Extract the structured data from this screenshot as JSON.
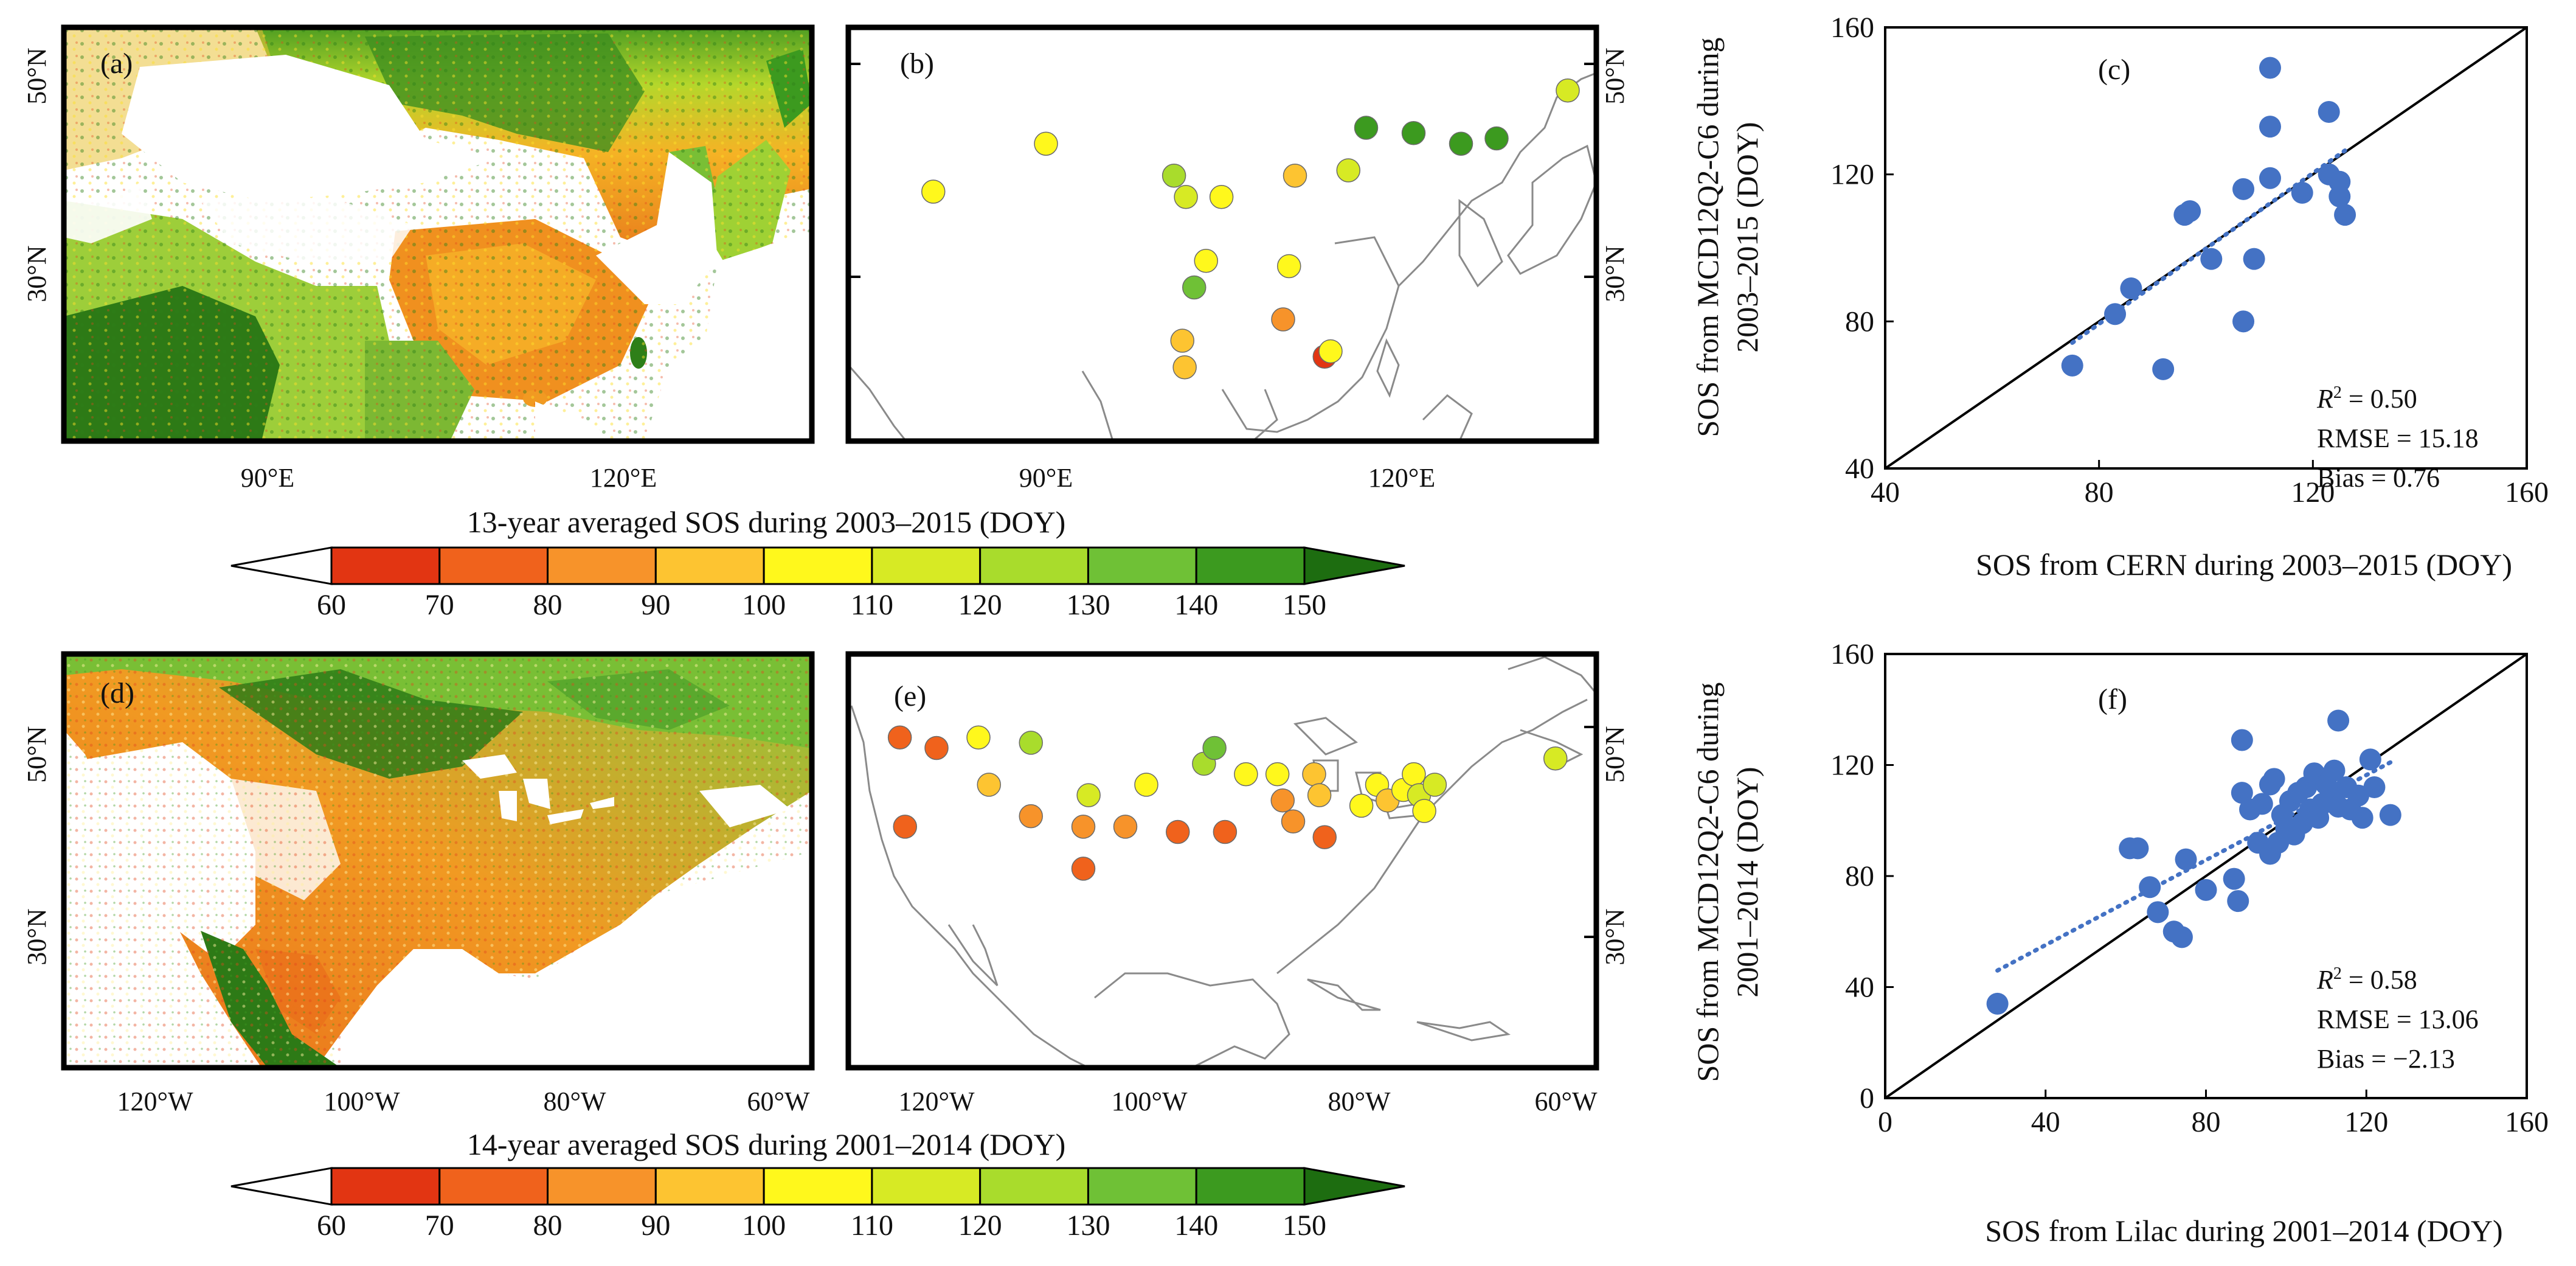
{
  "colors": {
    "cb_bins": [
      "#ffffff",
      "#e23512",
      "#f0621c",
      "#f7932a",
      "#fdc431",
      "#fff81c",
      "#d7ea24",
      "#a9dc2c",
      "#6fc136",
      "#3c9a1f",
      "#1d6d10"
    ],
    "scatter_point": "#4472c4",
    "trend": "#4472c4",
    "coast": "#8a8a8a"
  },
  "maps": {
    "a": {
      "label": "(a)",
      "lat_labels": [
        "50°N",
        "30°N"
      ],
      "lon_labels": [
        "90°E",
        "120°E"
      ]
    },
    "b": {
      "label": "(b)",
      "lat_labels": [
        "50°N",
        "30°N"
      ],
      "lon_labels": [
        "90°E",
        "120°E"
      ],
      "sites": [
        {
          "lon": 90.0,
          "lat": 42.5,
          "sos": 105
        },
        {
          "lon": 80.5,
          "lat": 38.0,
          "sos": 104
        },
        {
          "lon": 100.8,
          "lat": 39.5,
          "sos": 121
        },
        {
          "lon": 101.8,
          "lat": 37.5,
          "sos": 118
        },
        {
          "lon": 104.8,
          "lat": 37.5,
          "sos": 107
        },
        {
          "lon": 111.0,
          "lat": 39.5,
          "sos": 93
        },
        {
          "lon": 115.5,
          "lat": 40.0,
          "sos": 112
        },
        {
          "lon": 117.0,
          "lat": 44.0,
          "sos": 141
        },
        {
          "lon": 121.0,
          "lat": 43.5,
          "sos": 144
        },
        {
          "lon": 125.0,
          "lat": 42.5,
          "sos": 146
        },
        {
          "lon": 128.0,
          "lat": 43.0,
          "sos": 140
        },
        {
          "lon": 134.0,
          "lat": 47.5,
          "sos": 116
        },
        {
          "lon": 103.5,
          "lat": 31.5,
          "sos": 100
        },
        {
          "lon": 110.5,
          "lat": 31.0,
          "sos": 102
        },
        {
          "lon": 102.5,
          "lat": 29.0,
          "sos": 136
        },
        {
          "lon": 110.0,
          "lat": 26.0,
          "sos": 89
        },
        {
          "lon": 101.5,
          "lat": 24.0,
          "sos": 92
        },
        {
          "lon": 101.7,
          "lat": 21.5,
          "sos": 98
        },
        {
          "lon": 113.5,
          "lat": 22.5,
          "sos": 63
        },
        {
          "lon": 114.0,
          "lat": 23.0,
          "sos": 108
        }
      ]
    },
    "d": {
      "label": "(d)",
      "lat_labels": [
        "50°N",
        "30°N"
      ],
      "lon_labels": [
        "120°W",
        "100°W",
        "80°W",
        "60°W"
      ]
    },
    "e": {
      "label": "(e)",
      "lat_labels": [
        "50°N",
        "30°N"
      ],
      "lon_labels": [
        "120°W",
        "100°W",
        "80°W",
        "60°W"
      ],
      "sites": [
        {
          "lon": -123.5,
          "lat": 49.0,
          "sos": 77
        },
        {
          "lon": -120.0,
          "lat": 48.0,
          "sos": 79
        },
        {
          "lon": -116.0,
          "lat": 49.0,
          "sos": 104
        },
        {
          "lon": -111.0,
          "lat": 48.5,
          "sos": 128
        },
        {
          "lon": -115.0,
          "lat": 44.5,
          "sos": 94
        },
        {
          "lon": -123.0,
          "lat": 40.5,
          "sos": 74
        },
        {
          "lon": -111.0,
          "lat": 41.5,
          "sos": 82
        },
        {
          "lon": -105.5,
          "lat": 43.5,
          "sos": 116
        },
        {
          "lon": -100.0,
          "lat": 44.5,
          "sos": 105
        },
        {
          "lon": -94.5,
          "lat": 46.5,
          "sos": 122
        },
        {
          "lon": -93.5,
          "lat": 48.0,
          "sos": 132
        },
        {
          "lon": -106.0,
          "lat": 40.5,
          "sos": 85
        },
        {
          "lon": -102.0,
          "lat": 40.5,
          "sos": 82
        },
        {
          "lon": -97.0,
          "lat": 40.0,
          "sos": 79
        },
        {
          "lon": -92.5,
          "lat": 40.0,
          "sos": 74
        },
        {
          "lon": -106.0,
          "lat": 36.5,
          "sos": 78
        },
        {
          "lon": -90.5,
          "lat": 45.5,
          "sos": 103
        },
        {
          "lon": -87.5,
          "lat": 45.5,
          "sos": 100
        },
        {
          "lon": -87.0,
          "lat": 43.0,
          "sos": 88
        },
        {
          "lon": -86.0,
          "lat": 41.0,
          "sos": 83
        },
        {
          "lon": -84.0,
          "lat": 45.5,
          "sos": 99
        },
        {
          "lon": -83.5,
          "lat": 43.5,
          "sos": 94
        },
        {
          "lon": -83.0,
          "lat": 39.5,
          "sos": 76
        },
        {
          "lon": -79.5,
          "lat": 42.5,
          "sos": 101
        },
        {
          "lon": -78.0,
          "lat": 44.5,
          "sos": 108
        },
        {
          "lon": -77.0,
          "lat": 43.0,
          "sos": 95
        },
        {
          "lon": -75.5,
          "lat": 44.0,
          "sos": 104
        },
        {
          "lon": -74.5,
          "lat": 45.5,
          "sos": 106
        },
        {
          "lon": -74.0,
          "lat": 43.5,
          "sos": 110
        },
        {
          "lon": -73.5,
          "lat": 42.0,
          "sos": 102
        },
        {
          "lon": -72.5,
          "lat": 44.5,
          "sos": 114
        },
        {
          "lon": -61.0,
          "lat": 47.0,
          "sos": 118
        }
      ]
    }
  },
  "colorbars": [
    {
      "title": "13-year averaged SOS during 2003–2015 (DOY)",
      "ticks": [
        "60",
        "70",
        "80",
        "90",
        "100",
        "110",
        "120",
        "130",
        "140",
        "150"
      ]
    },
    {
      "title": "14-year averaged SOS during 2001–2014 (DOY)",
      "ticks": [
        "60",
        "70",
        "80",
        "90",
        "100",
        "110",
        "120",
        "130",
        "140",
        "150"
      ]
    }
  ],
  "chart_data": [
    {
      "type": "scatter",
      "panel": "(c)",
      "xlabel": "SOS from CERN during 2003–2015 (DOY)",
      "ylabel_line1": "SOS from MCD12Q2-C6 during",
      "ylabel_line2": "2003–2015 (DOY)",
      "xlim": [
        40,
        160
      ],
      "ylim": [
        40,
        160
      ],
      "xticks": [
        40,
        80,
        120,
        160
      ],
      "yticks": [
        40,
        80,
        120,
        160
      ],
      "stats": {
        "r2_label": "R",
        "r2_value": " = 0.50",
        "rmse": "RMSE = 15.18",
        "bias": "Bias = 0.76"
      },
      "trend_x": [
        75,
        126
      ],
      "points": [
        {
          "x": 75,
          "y": 68
        },
        {
          "x": 83,
          "y": 82
        },
        {
          "x": 86,
          "y": 89
        },
        {
          "x": 92,
          "y": 67
        },
        {
          "x": 96,
          "y": 109
        },
        {
          "x": 97,
          "y": 110
        },
        {
          "x": 101,
          "y": 97
        },
        {
          "x": 107,
          "y": 80
        },
        {
          "x": 107,
          "y": 116
        },
        {
          "x": 109,
          "y": 97
        },
        {
          "x": 112,
          "y": 119
        },
        {
          "x": 112,
          "y": 149
        },
        {
          "x": 112,
          "y": 133
        },
        {
          "x": 118,
          "y": 115
        },
        {
          "x": 123,
          "y": 137
        },
        {
          "x": 123,
          "y": 120
        },
        {
          "x": 125,
          "y": 118
        },
        {
          "x": 125,
          "y": 114
        },
        {
          "x": 126,
          "y": 109
        }
      ]
    },
    {
      "type": "scatter",
      "panel": "(f)",
      "xlabel": "SOS from Lilac during 2001–2014 (DOY)",
      "ylabel_line1": "SOS from MCD12Q2-C6 during",
      "ylabel_line2": "2001–2014 (DOY)",
      "xlim": [
        0,
        160
      ],
      "ylim": [
        0,
        160
      ],
      "xticks": [
        0,
        40,
        80,
        120,
        160
      ],
      "yticks": [
        0,
        40,
        80,
        120,
        160
      ],
      "stats": {
        "r2_label": "R",
        "r2_value": " = 0.58",
        "rmse": "RMSE = 13.06",
        "bias": "Bias = −2.13"
      },
      "trend_x": [
        28,
        126
      ],
      "points": [
        {
          "x": 28,
          "y": 34
        },
        {
          "x": 61,
          "y": 90
        },
        {
          "x": 63,
          "y": 90
        },
        {
          "x": 66,
          "y": 76
        },
        {
          "x": 68,
          "y": 67
        },
        {
          "x": 72,
          "y": 60
        },
        {
          "x": 74,
          "y": 58
        },
        {
          "x": 75,
          "y": 86
        },
        {
          "x": 80,
          "y": 75
        },
        {
          "x": 87,
          "y": 79
        },
        {
          "x": 88,
          "y": 71
        },
        {
          "x": 89,
          "y": 110
        },
        {
          "x": 89,
          "y": 129
        },
        {
          "x": 91,
          "y": 104
        },
        {
          "x": 93,
          "y": 92
        },
        {
          "x": 94,
          "y": 106
        },
        {
          "x": 96,
          "y": 88
        },
        {
          "x": 96,
          "y": 113
        },
        {
          "x": 97,
          "y": 115
        },
        {
          "x": 98,
          "y": 92
        },
        {
          "x": 99,
          "y": 102
        },
        {
          "x": 100,
          "y": 97
        },
        {
          "x": 101,
          "y": 107
        },
        {
          "x": 102,
          "y": 95
        },
        {
          "x": 103,
          "y": 110
        },
        {
          "x": 104,
          "y": 99
        },
        {
          "x": 105,
          "y": 112
        },
        {
          "x": 106,
          "y": 104
        },
        {
          "x": 107,
          "y": 117
        },
        {
          "x": 108,
          "y": 101
        },
        {
          "x": 109,
          "y": 106
        },
        {
          "x": 110,
          "y": 113
        },
        {
          "x": 111,
          "y": 108
        },
        {
          "x": 112,
          "y": 118
        },
        {
          "x": 113,
          "y": 105
        },
        {
          "x": 113,
          "y": 136
        },
        {
          "x": 115,
          "y": 112
        },
        {
          "x": 116,
          "y": 104
        },
        {
          "x": 118,
          "y": 109
        },
        {
          "x": 119,
          "y": 101
        },
        {
          "x": 121,
          "y": 122
        },
        {
          "x": 122,
          "y": 112
        },
        {
          "x": 126,
          "y": 102
        }
      ]
    }
  ]
}
